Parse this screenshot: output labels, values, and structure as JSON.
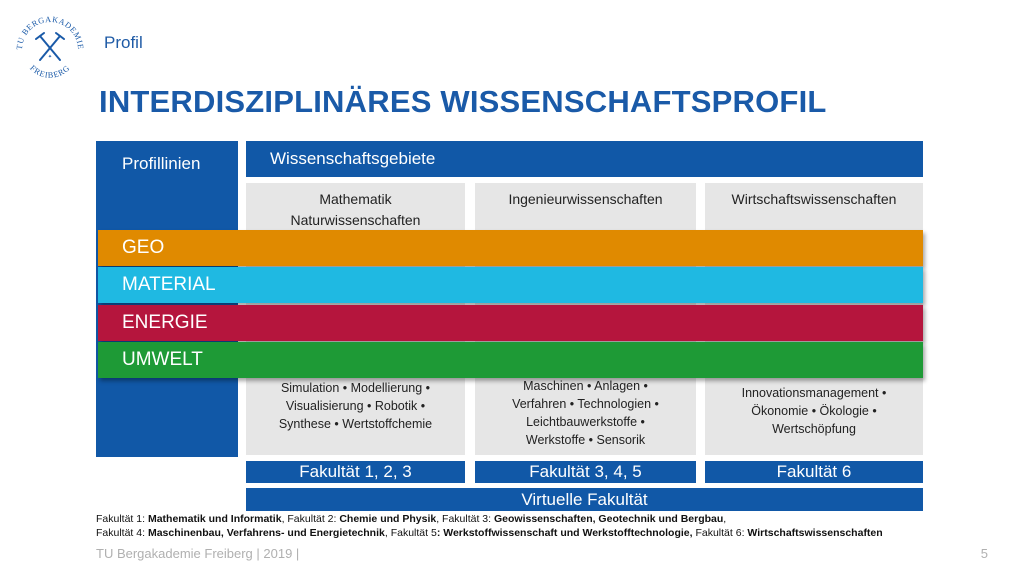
{
  "logo": {
    "ring_text_top": "TU BERGAKADEMIE",
    "ring_text_bottom": "FREIBERG",
    "color": "#1a5aa8"
  },
  "header": {
    "section": "Profil",
    "title": "INTERDISZIPLINÄRES WISSENSCHAFTSPROFIL"
  },
  "diagram": {
    "profillinien_label": "Profillinien",
    "wissenschaftsgebiete_label": "Wissenschaftsgebiete",
    "columns": [
      {
        "title_lines": [
          "Mathematik",
          "Naturwissenschaften"
        ],
        "detail_lines": [
          "Simulation • Modellierung •",
          "Visualisierung • Robotik •",
          "Synthese • Wertstoffchemie"
        ],
        "faculty": "Fakultät 1, 2, 3"
      },
      {
        "title_lines": [
          "Ingenieurwissenschaften"
        ],
        "detail_lines": [
          "Maschinen •  Anlagen •",
          "Verfahren • Technologien •",
          "Leichtbauwerkstoffe •",
          "Werkstoffe • Sensorik"
        ],
        "faculty": "Fakultät 3, 4, 5"
      },
      {
        "title_lines": [
          "Wirtschaftswissenschaften"
        ],
        "detail_lines": [
          "Innovationsmanagement •",
          "Ökonomie • Ökologie •",
          "Wertschöpfung"
        ],
        "faculty": "Fakultät 6"
      }
    ],
    "bands": [
      {
        "label": "GEO",
        "color": "#e08a00"
      },
      {
        "label": "MATERIAL",
        "color": "#1fb9e2"
      },
      {
        "label": "ENERGIE",
        "color": "#b5153d"
      },
      {
        "label": "UMWELT",
        "color": "#1e9a36"
      }
    ],
    "virtual_faculty": "Virtuelle Fakultät"
  },
  "footnote": {
    "line1": [
      {
        "t": "Fakultät 1: ",
        "b": false
      },
      {
        "t": "Mathematik und Informatik",
        "b": true
      },
      {
        "t": ", Fakultät 2: ",
        "b": false
      },
      {
        "t": "Chemie und Physik",
        "b": true
      },
      {
        "t": ", Fakultät 3: ",
        "b": false
      },
      {
        "t": "Geowissenschaften, Geotechnik und Bergbau",
        "b": true
      },
      {
        "t": ",",
        "b": false
      }
    ],
    "line2": [
      {
        "t": "Fakultät 4: ",
        "b": false
      },
      {
        "t": "Maschinenbau, Verfahrens- und Energietechnik",
        "b": true
      },
      {
        "t": ", Fakultät 5",
        "b": false
      },
      {
        "t": ": Werkstoffwissenschaft und Werkstofftechnologie,",
        "b": true
      },
      {
        "t": " Fakultät 6: ",
        "b": false
      },
      {
        "t": "Wirtschaftswissenschaften",
        "b": true
      }
    ]
  },
  "footer": {
    "text": "TU Bergakademie Freiberg | 2019 |",
    "page": "5"
  }
}
